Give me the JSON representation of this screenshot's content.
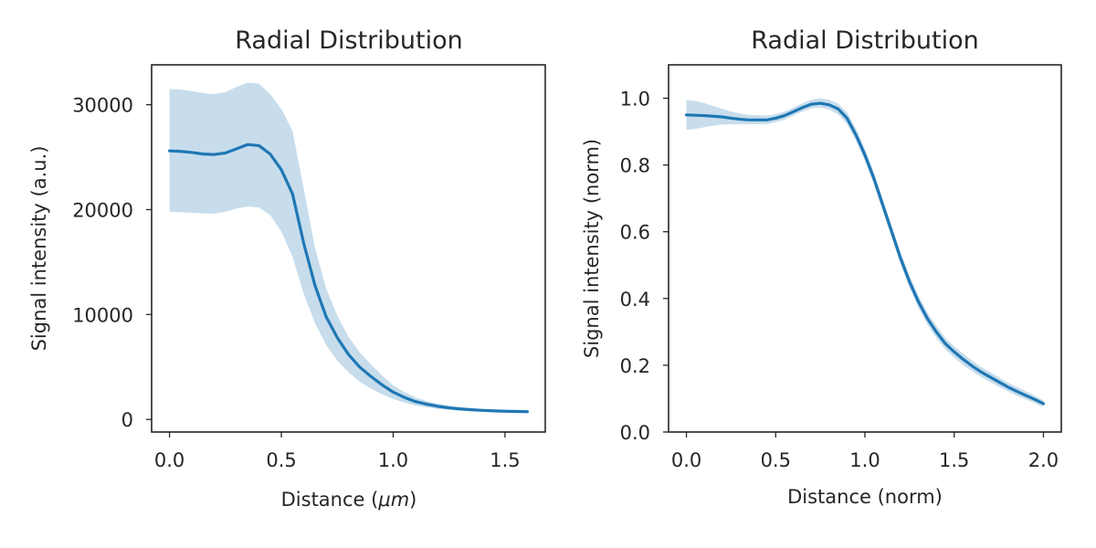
{
  "chart_data": [
    {
      "type": "line",
      "title": "Radial Distribution",
      "xlabel": "Distance (",
      "xlabel_math": "μm",
      "xlabel_suffix": ")",
      "ylabel": "Signal intensity (a.u.)",
      "xlim": [
        -0.08,
        1.68
      ],
      "ylim": [
        -1200,
        33800
      ],
      "xticks": [
        0.0,
        0.5,
        1.0,
        1.5
      ],
      "xtick_labels": [
        "0.0",
        "0.5",
        "1.0",
        "1.5"
      ],
      "yticks": [
        0,
        10000,
        20000,
        30000
      ],
      "ytick_labels": [
        "0",
        "10000",
        "20000",
        "30000"
      ],
      "grid": false,
      "series": [
        {
          "color": "#1f77b4",
          "x": [
            0.0,
            0.05,
            0.1,
            0.15,
            0.2,
            0.25,
            0.3,
            0.35,
            0.4,
            0.45,
            0.5,
            0.55,
            0.6,
            0.65,
            0.7,
            0.75,
            0.8,
            0.85,
            0.9,
            0.95,
            1.0,
            1.05,
            1.1,
            1.15,
            1.2,
            1.25,
            1.3,
            1.35,
            1.4,
            1.45,
            1.5,
            1.55,
            1.6
          ],
          "y": [
            25600,
            25550,
            25450,
            25300,
            25250,
            25400,
            25800,
            26200,
            26100,
            25300,
            23800,
            21500,
            16800,
            12800,
            9800,
            7800,
            6200,
            5000,
            4100,
            3300,
            2600,
            2100,
            1700,
            1450,
            1250,
            1100,
            1000,
            920,
            860,
            810,
            780,
            760,
            740
          ],
          "lower": [
            19800,
            19750,
            19700,
            19650,
            19600,
            19800,
            20100,
            20300,
            20200,
            19500,
            17900,
            15500,
            12000,
            9200,
            7100,
            5600,
            4500,
            3600,
            2950,
            2400,
            1950,
            1600,
            1320,
            1150,
            1000,
            900,
            830,
            780,
            730,
            700,
            680,
            660,
            650
          ],
          "upper": [
            31500,
            31450,
            31300,
            31100,
            31000,
            31200,
            31700,
            32100,
            32000,
            31000,
            29600,
            27500,
            22000,
            16400,
            12500,
            9900,
            7900,
            6400,
            5250,
            4200,
            3250,
            2600,
            2100,
            1750,
            1500,
            1300,
            1170,
            1060,
            990,
            930,
            880,
            860,
            830
          ]
        }
      ]
    },
    {
      "type": "line",
      "title": "Radial Distribution",
      "xlabel": "Distance (norm)",
      "ylabel": "Signal intensity (norm)",
      "xlim": [
        -0.1,
        2.1
      ],
      "ylim": [
        0.0,
        1.1
      ],
      "xticks": [
        0.0,
        0.5,
        1.0,
        1.5,
        2.0
      ],
      "xtick_labels": [
        "0.0",
        "0.5",
        "1.0",
        "1.5",
        "2.0"
      ],
      "yticks": [
        0.0,
        0.2,
        0.4,
        0.6,
        0.8,
        1.0
      ],
      "ytick_labels": [
        "0.0",
        "0.2",
        "0.4",
        "0.6",
        "0.8",
        "1.0"
      ],
      "grid": false,
      "series": [
        {
          "color": "#1f77b4",
          "x": [
            0.0,
            0.05,
            0.1,
            0.15,
            0.2,
            0.25,
            0.3,
            0.35,
            0.4,
            0.45,
            0.5,
            0.55,
            0.6,
            0.65,
            0.7,
            0.75,
            0.8,
            0.85,
            0.9,
            0.95,
            1.0,
            1.05,
            1.1,
            1.15,
            1.2,
            1.25,
            1.3,
            1.35,
            1.4,
            1.45,
            1.5,
            1.55,
            1.6,
            1.65,
            1.7,
            1.75,
            1.8,
            1.85,
            1.9,
            1.95,
            2.0
          ],
          "y": [
            0.95,
            0.949,
            0.948,
            0.946,
            0.944,
            0.94,
            0.937,
            0.935,
            0.935,
            0.935,
            0.94,
            0.948,
            0.96,
            0.972,
            0.982,
            0.985,
            0.98,
            0.968,
            0.94,
            0.89,
            0.83,
            0.76,
            0.68,
            0.6,
            0.52,
            0.45,
            0.39,
            0.34,
            0.3,
            0.265,
            0.24,
            0.218,
            0.198,
            0.18,
            0.165,
            0.15,
            0.135,
            0.122,
            0.11,
            0.098,
            0.085
          ],
          "lower": [
            0.905,
            0.908,
            0.913,
            0.918,
            0.921,
            0.922,
            0.922,
            0.922,
            0.922,
            0.923,
            0.928,
            0.936,
            0.948,
            0.96,
            0.97,
            0.972,
            0.966,
            0.952,
            0.922,
            0.872,
            0.812,
            0.742,
            0.662,
            0.582,
            0.502,
            0.432,
            0.372,
            0.322,
            0.282,
            0.248,
            0.223,
            0.201,
            0.182,
            0.165,
            0.15,
            0.136,
            0.122,
            0.109,
            0.098,
            0.087,
            0.075
          ],
          "upper": [
            0.995,
            0.992,
            0.985,
            0.977,
            0.968,
            0.96,
            0.954,
            0.95,
            0.949,
            0.948,
            0.952,
            0.96,
            0.972,
            0.985,
            0.995,
            1.0,
            0.995,
            0.984,
            0.958,
            0.908,
            0.848,
            0.778,
            0.698,
            0.618,
            0.538,
            0.468,
            0.408,
            0.358,
            0.318,
            0.282,
            0.257,
            0.235,
            0.214,
            0.195,
            0.18,
            0.164,
            0.148,
            0.135,
            0.122,
            0.109,
            0.095
          ]
        }
      ]
    }
  ]
}
